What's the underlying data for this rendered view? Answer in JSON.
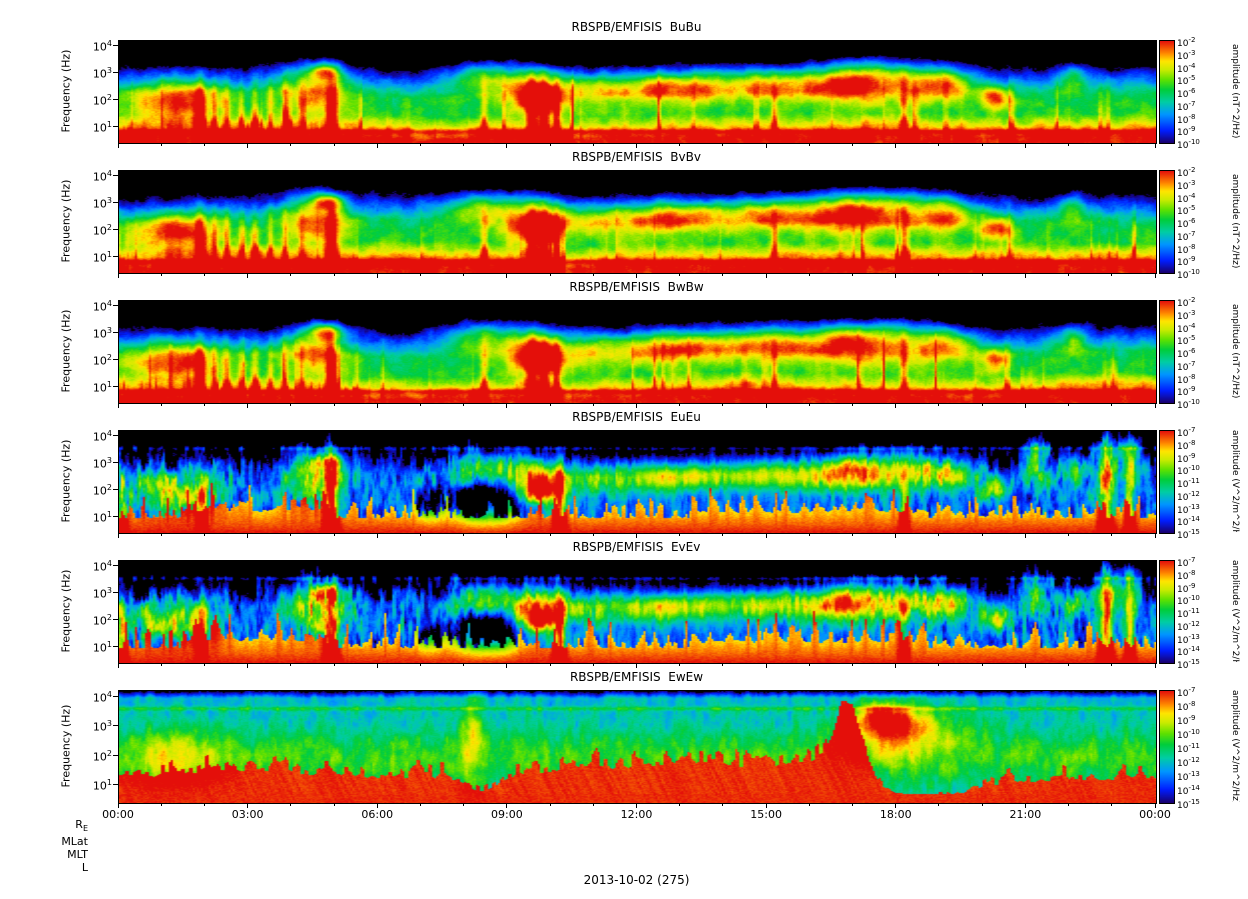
{
  "figure": {
    "date_label": "2013-10-02 (275)",
    "orbit_row_labels": [
      "R_E",
      "MLat",
      "MLT",
      "L"
    ],
    "x_axis": {
      "tick_labels": [
        "00:00",
        "03:00",
        "06:00",
        "09:00",
        "12:00",
        "15:00",
        "18:00",
        "21:00",
        "00:00"
      ]
    },
    "y_axis": {
      "label": "Frequency (Hz)",
      "tick_exponents": [
        4,
        3,
        2,
        1
      ]
    },
    "panels": [
      {
        "id": "BuBu",
        "title": "RBSPB/EMFISIS  BuBu",
        "kind": "B",
        "colorbar": {
          "label": "amplitude (nT^2/Hz)",
          "tick_exponents": [
            -2,
            -3,
            -4,
            -5,
            -6,
            -7,
            -8,
            -9,
            -10
          ]
        }
      },
      {
        "id": "BvBv",
        "title": "RBSPB/EMFISIS  BvBv",
        "kind": "B",
        "colorbar": {
          "label": "amplitude (nT^2/Hz)",
          "tick_exponents": [
            -2,
            -3,
            -4,
            -5,
            -6,
            -7,
            -8,
            -9,
            -10
          ]
        }
      },
      {
        "id": "BwBw",
        "title": "RBSPB/EMFISIS  BwBw",
        "kind": "B",
        "colorbar": {
          "label": "amplitude (nT^2/Hz)",
          "tick_exponents": [
            -2,
            -3,
            -4,
            -5,
            -6,
            -7,
            -8,
            -9,
            -10
          ]
        }
      },
      {
        "id": "EuEu",
        "title": "RBSPB/EMFISIS  EuEu",
        "kind": "E",
        "colorbar": {
          "label": "amplitude (V^2/m^2/Hz)",
          "tick_exponents": [
            -7,
            -8,
            -9,
            -10,
            -11,
            -12,
            -13,
            -14,
            -15
          ]
        }
      },
      {
        "id": "EvEv",
        "title": "RBSPB/EMFISIS  EvEv",
        "kind": "E",
        "colorbar": {
          "label": "amplitude (V^2/m^2/Hz)",
          "tick_exponents": [
            -7,
            -8,
            -9,
            -10,
            -11,
            -12,
            -13,
            -14,
            -15
          ]
        }
      },
      {
        "id": "EwEw",
        "title": "RBSPB/EMFISIS  EwEw",
        "kind": "Ew",
        "colorbar": {
          "label": "amplitude (V^2/m^2/Hz)",
          "tick_exponents": [
            -7,
            -8,
            -9,
            -10,
            -11,
            -12,
            -13,
            -14,
            -15
          ]
        }
      }
    ]
  },
  "chart_data": {
    "type": "heatmap",
    "subtype": "six stacked 24-hour time-frequency spectrograms sharing one time axis",
    "date_label": "2013-10-02 (275)",
    "x_axis": {
      "label": "UT time on 2013-10-02 (day 275)",
      "range_hours": [
        0,
        24
      ],
      "tick_labels": [
        "00:00",
        "03:00",
        "06:00",
        "09:00",
        "12:00",
        "15:00",
        "18:00",
        "21:00",
        "00:00"
      ]
    },
    "y_axis": {
      "label": "Frequency (Hz)",
      "scale": "log",
      "approx_range_hz": [
        2.5,
        16000
      ],
      "tick_labels": [
        "10^1",
        "10^2",
        "10^3",
        "10^4"
      ]
    },
    "color_scale": "rainbow; black below minimum, dark blue -> blue -> cyan -> green -> yellow -> orange -> red",
    "panels": [
      {
        "title": "RBSPB/EMFISIS  BuBu",
        "colorbar_label": "amplitude (nT^2/Hz)",
        "color_range": [
          "1e-10",
          "1e-2"
        ],
        "visible_structure": "green broadband below ~300 Hz all day; red/orange band at lowest frequencies; bursts near 01:30, 05:00 and 08:00-10:30 with red low-frequency spikes; recurring 100-1000 Hz green patches 10:00-22:00; black above ~2-3 kHz"
      },
      {
        "title": "RBSPB/EMFISIS  BvBv",
        "colorbar_label": "amplitude (nT^2/Hz)",
        "color_range": [
          "1e-10",
          "1e-2"
        ],
        "visible_structure": "nearly identical to BuBu"
      },
      {
        "title": "RBSPB/EMFISIS  BwBw",
        "colorbar_label": "amplitude (nT^2/Hz)",
        "color_range": [
          "1e-10",
          "1e-2"
        ],
        "visible_structure": "nearly identical to BuBu"
      },
      {
        "title": "RBSPB/EMFISIS  EuEu",
        "colorbar_label": "amplitude (V^2/m^2/Hz)",
        "color_range": [
          "1e-15",
          "1e-7"
        ],
        "visible_structure": "strong vertical striping; noisy blue background up to ~2 kHz; intense red columns near 05:00, 10:00 and ~22:45; spiky orange/red band at lowest frequencies; green patches matching magnetic bursts; dark-blue notches 07:30-09:00"
      },
      {
        "title": "RBSPB/EMFISIS  EvEv",
        "colorbar_label": "amplitude (V^2/m^2/Hz)",
        "color_range": [
          "1e-15",
          "1e-7"
        ],
        "visible_structure": "nearly identical to EuEu"
      },
      {
        "title": "RBSPB/EMFISIS  EwEw",
        "colorbar_label": "amplitude (V^2/m^2/Hz)",
        "color_range": [
          "1e-15",
          "1e-7"
        ],
        "visible_structure": "cyan/green background at nearly all frequencies; broad intense red band at low frequencies most of the day with comb-like spikes, reaching ~3 kHz near 16:50; green/yellow enhancement 17:30-19:30; thin faint line near 4 kHz"
      }
    ],
    "extra_row_labels": [
      "R_E",
      "MLat",
      "MLT",
      "L"
    ]
  }
}
